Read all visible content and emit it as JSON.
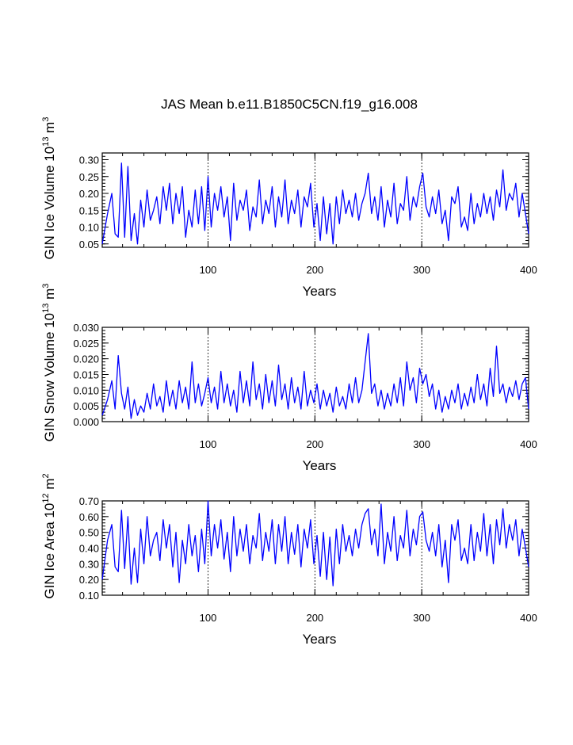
{
  "figure": {
    "title": "JAS Mean b.e11.B1850C5CN.f19_g16.008",
    "line_color": "#0000ff"
  },
  "chart_data": [
    {
      "type": "line",
      "ylabel": "GIN Ice Volume",
      "ylabel_exponent": "13",
      "ylabel_unit": "m",
      "ylabel_unit_exponent": "3",
      "xlabel": "Years",
      "xlim": [
        1,
        400
      ],
      "ylim": [
        0.04,
        0.32
      ],
      "yticks": [
        0.05,
        0.1,
        0.15,
        0.2,
        0.25,
        0.3
      ],
      "ytick_labels": [
        "0.05",
        "0.10",
        "0.15",
        "0.20",
        "0.25",
        "0.30"
      ],
      "xticks": [
        100,
        200,
        300,
        400
      ],
      "xtick_labels": [
        "100",
        "200",
        "300",
        "400"
      ],
      "ref_lines_x": [
        100,
        200,
        300
      ],
      "series": [
        {
          "name": "GIN Ice Volume",
          "x": [
            1,
            6,
            10,
            13,
            16,
            19,
            22,
            25,
            28,
            31,
            34,
            37,
            40,
            43,
            46,
            49,
            52,
            55,
            58,
            61,
            64,
            67,
            70,
            73,
            76,
            79,
            82,
            85,
            88,
            91,
            94,
            97,
            100,
            103,
            106,
            109,
            112,
            115,
            118,
            121,
            124,
            127,
            130,
            133,
            136,
            139,
            142,
            145,
            148,
            151,
            154,
            157,
            160,
            163,
            166,
            169,
            172,
            175,
            178,
            181,
            184,
            187,
            190,
            193,
            196,
            199,
            202,
            205,
            208,
            211,
            214,
            217,
            220,
            223,
            226,
            229,
            232,
            235,
            238,
            241,
            244,
            247,
            250,
            253,
            256,
            259,
            262,
            265,
            268,
            271,
            274,
            277,
            280,
            283,
            286,
            289,
            292,
            295,
            298,
            301,
            304,
            307,
            310,
            313,
            316,
            319,
            322,
            325,
            328,
            331,
            334,
            337,
            340,
            343,
            346,
            349,
            352,
            355,
            358,
            361,
            364,
            367,
            370,
            373,
            376,
            379,
            382,
            385,
            388,
            391,
            394,
            397,
            400
          ],
          "values": [
            0.05,
            0.14,
            0.2,
            0.08,
            0.07,
            0.29,
            0.07,
            0.28,
            0.06,
            0.14,
            0.05,
            0.18,
            0.1,
            0.21,
            0.12,
            0.15,
            0.19,
            0.11,
            0.22,
            0.15,
            0.23,
            0.11,
            0.2,
            0.14,
            0.22,
            0.07,
            0.15,
            0.1,
            0.21,
            0.11,
            0.22,
            0.09,
            0.25,
            0.1,
            0.2,
            0.15,
            0.22,
            0.13,
            0.19,
            0.06,
            0.23,
            0.12,
            0.18,
            0.15,
            0.21,
            0.09,
            0.16,
            0.13,
            0.24,
            0.11,
            0.18,
            0.14,
            0.22,
            0.1,
            0.19,
            0.13,
            0.24,
            0.11,
            0.18,
            0.14,
            0.21,
            0.1,
            0.19,
            0.16,
            0.23,
            0.1,
            0.17,
            0.06,
            0.19,
            0.08,
            0.17,
            0.05,
            0.19,
            0.11,
            0.21,
            0.14,
            0.18,
            0.13,
            0.2,
            0.12,
            0.17,
            0.2,
            0.26,
            0.14,
            0.19,
            0.12,
            0.22,
            0.1,
            0.18,
            0.13,
            0.23,
            0.11,
            0.17,
            0.15,
            0.25,
            0.12,
            0.19,
            0.16,
            0.22,
            0.26,
            0.16,
            0.13,
            0.19,
            0.14,
            0.21,
            0.11,
            0.15,
            0.06,
            0.19,
            0.17,
            0.22,
            0.1,
            0.13,
            0.09,
            0.2,
            0.11,
            0.17,
            0.13,
            0.2,
            0.14,
            0.19,
            0.12,
            0.21,
            0.16,
            0.27,
            0.15,
            0.2,
            0.18,
            0.23,
            0.13,
            0.2,
            0.14,
            0.08
          ]
        }
      ]
    },
    {
      "type": "line",
      "ylabel": "GIN Snow Volume",
      "ylabel_exponent": "13",
      "ylabel_unit": "m",
      "ylabel_unit_exponent": "3",
      "xlabel": "Years",
      "xlim": [
        1,
        400
      ],
      "ylim": [
        0.0,
        0.03
      ],
      "yticks": [
        0.0,
        0.005,
        0.01,
        0.015,
        0.02,
        0.025,
        0.03
      ],
      "ytick_labels": [
        "0.000",
        "0.005",
        "0.010",
        "0.015",
        "0.020",
        "0.025",
        "0.030"
      ],
      "xticks": [
        100,
        200,
        300,
        400
      ],
      "xtick_labels": [
        "100",
        "200",
        "300",
        "400"
      ],
      "ref_lines_x": [
        100,
        200,
        300
      ],
      "series": [
        {
          "name": "GIN Snow Volume",
          "x": [
            1,
            6,
            10,
            13,
            16,
            19,
            22,
            25,
            28,
            31,
            34,
            37,
            40,
            43,
            46,
            49,
            52,
            55,
            58,
            61,
            64,
            67,
            70,
            73,
            76,
            79,
            82,
            85,
            88,
            91,
            94,
            97,
            100,
            103,
            106,
            109,
            112,
            115,
            118,
            121,
            124,
            127,
            130,
            133,
            136,
            139,
            142,
            145,
            148,
            151,
            154,
            157,
            160,
            163,
            166,
            169,
            172,
            175,
            178,
            181,
            184,
            187,
            190,
            193,
            196,
            199,
            202,
            205,
            208,
            211,
            214,
            217,
            220,
            223,
            226,
            229,
            232,
            235,
            238,
            241,
            244,
            247,
            250,
            253,
            256,
            259,
            262,
            265,
            268,
            271,
            274,
            277,
            280,
            283,
            286,
            289,
            292,
            295,
            298,
            301,
            304,
            307,
            310,
            313,
            316,
            319,
            322,
            325,
            328,
            331,
            334,
            337,
            340,
            343,
            346,
            349,
            352,
            355,
            358,
            361,
            364,
            367,
            370,
            373,
            376,
            379,
            382,
            385,
            388,
            391,
            394,
            397,
            400
          ],
          "values": [
            0.002,
            0.007,
            0.013,
            0.004,
            0.021,
            0.009,
            0.004,
            0.011,
            0.001,
            0.007,
            0.002,
            0.005,
            0.003,
            0.009,
            0.004,
            0.012,
            0.005,
            0.008,
            0.003,
            0.013,
            0.005,
            0.01,
            0.004,
            0.013,
            0.006,
            0.011,
            0.004,
            0.019,
            0.006,
            0.012,
            0.005,
            0.009,
            0.014,
            0.006,
            0.011,
            0.004,
            0.016,
            0.006,
            0.012,
            0.005,
            0.01,
            0.003,
            0.016,
            0.006,
            0.013,
            0.005,
            0.019,
            0.007,
            0.012,
            0.004,
            0.015,
            0.006,
            0.013,
            0.005,
            0.018,
            0.007,
            0.012,
            0.004,
            0.014,
            0.006,
            0.011,
            0.004,
            0.016,
            0.005,
            0.01,
            0.006,
            0.012,
            0.004,
            0.01,
            0.005,
            0.009,
            0.003,
            0.011,
            0.005,
            0.008,
            0.004,
            0.012,
            0.006,
            0.014,
            0.006,
            0.01,
            0.019,
            0.028,
            0.009,
            0.012,
            0.005,
            0.01,
            0.004,
            0.009,
            0.005,
            0.012,
            0.006,
            0.014,
            0.005,
            0.019,
            0.01,
            0.014,
            0.006,
            0.017,
            0.012,
            0.015,
            0.008,
            0.012,
            0.004,
            0.01,
            0.003,
            0.008,
            0.004,
            0.01,
            0.006,
            0.012,
            0.004,
            0.009,
            0.005,
            0.011,
            0.006,
            0.015,
            0.007,
            0.012,
            0.005,
            0.017,
            0.008,
            0.024,
            0.009,
            0.012,
            0.006,
            0.011,
            0.008,
            0.013,
            0.007,
            0.012,
            0.014,
            0.004
          ]
        }
      ]
    },
    {
      "type": "line",
      "ylabel": "GIN Ice Area",
      "ylabel_exponent": "12",
      "ylabel_unit": "m",
      "ylabel_unit_exponent": "2",
      "xlabel": "Years",
      "xlim": [
        1,
        400
      ],
      "ylim": [
        0.1,
        0.7
      ],
      "yticks": [
        0.1,
        0.2,
        0.3,
        0.4,
        0.5,
        0.6,
        0.7
      ],
      "ytick_labels": [
        "0.10",
        "0.20",
        "0.30",
        "0.40",
        "0.50",
        "0.60",
        "0.70"
      ],
      "xticks": [
        100,
        200,
        300,
        400
      ],
      "xtick_labels": [
        "100",
        "200",
        "300",
        "400"
      ],
      "ref_lines_x": [
        100,
        200,
        300
      ],
      "series": [
        {
          "name": "GIN Ice Area",
          "x": [
            1,
            6,
            10,
            13,
            16,
            19,
            22,
            25,
            28,
            31,
            34,
            37,
            40,
            43,
            46,
            49,
            52,
            55,
            58,
            61,
            64,
            67,
            70,
            73,
            76,
            79,
            82,
            85,
            88,
            91,
            94,
            97,
            100,
            103,
            106,
            109,
            112,
            115,
            118,
            121,
            124,
            127,
            130,
            133,
            136,
            139,
            142,
            145,
            148,
            151,
            154,
            157,
            160,
            163,
            166,
            169,
            172,
            175,
            178,
            181,
            184,
            187,
            190,
            193,
            196,
            199,
            202,
            205,
            208,
            211,
            214,
            217,
            220,
            223,
            226,
            229,
            232,
            235,
            238,
            241,
            244,
            247,
            250,
            253,
            256,
            259,
            262,
            265,
            268,
            271,
            274,
            277,
            280,
            283,
            286,
            289,
            292,
            295,
            298,
            301,
            304,
            307,
            310,
            313,
            316,
            319,
            322,
            325,
            328,
            331,
            334,
            337,
            340,
            343,
            346,
            349,
            352,
            355,
            358,
            361,
            364,
            367,
            370,
            373,
            376,
            379,
            382,
            385,
            388,
            391,
            394,
            397,
            400
          ],
          "values": [
            0.2,
            0.45,
            0.55,
            0.28,
            0.25,
            0.64,
            0.27,
            0.6,
            0.17,
            0.4,
            0.18,
            0.52,
            0.3,
            0.6,
            0.35,
            0.45,
            0.5,
            0.32,
            0.58,
            0.4,
            0.55,
            0.28,
            0.5,
            0.18,
            0.45,
            0.3,
            0.55,
            0.35,
            0.48,
            0.25,
            0.52,
            0.3,
            0.7,
            0.35,
            0.55,
            0.4,
            0.58,
            0.33,
            0.5,
            0.25,
            0.6,
            0.35,
            0.52,
            0.38,
            0.55,
            0.3,
            0.48,
            0.4,
            0.62,
            0.32,
            0.5,
            0.38,
            0.58,
            0.3,
            0.55,
            0.38,
            0.6,
            0.3,
            0.5,
            0.36,
            0.55,
            0.28,
            0.52,
            0.4,
            0.58,
            0.3,
            0.48,
            0.22,
            0.5,
            0.2,
            0.47,
            0.16,
            0.52,
            0.3,
            0.55,
            0.38,
            0.48,
            0.35,
            0.52,
            0.4,
            0.55,
            0.62,
            0.65,
            0.42,
            0.52,
            0.35,
            0.68,
            0.3,
            0.5,
            0.38,
            0.6,
            0.32,
            0.48,
            0.4,
            0.64,
            0.35,
            0.52,
            0.42,
            0.6,
            0.63,
            0.45,
            0.38,
            0.5,
            0.35,
            0.55,
            0.28,
            0.45,
            0.18,
            0.55,
            0.45,
            0.58,
            0.32,
            0.4,
            0.3,
            0.55,
            0.32,
            0.5,
            0.38,
            0.62,
            0.35,
            0.55,
            0.3,
            0.58,
            0.42,
            0.65,
            0.4,
            0.55,
            0.45,
            0.58,
            0.35,
            0.52,
            0.4,
            0.28
          ]
        }
      ]
    }
  ]
}
